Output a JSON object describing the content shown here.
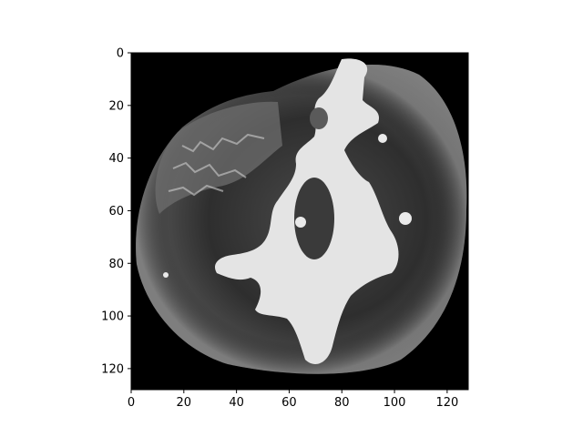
{
  "chart_data": {
    "type": "heatmap",
    "title": "",
    "xlabel": "",
    "ylabel": "",
    "colormap": "gray",
    "image_shape": [
      128,
      128
    ],
    "xlim": [
      0,
      128
    ],
    "ylim": [
      128,
      0
    ],
    "y_axis_inverted": true,
    "xticks": [
      0,
      20,
      40,
      60,
      80,
      100,
      120
    ],
    "yticks": [
      0,
      20,
      40,
      60,
      80,
      100,
      120
    ],
    "xtick_labels": [
      "0",
      "20",
      "40",
      "60",
      "80",
      "100",
      "120"
    ],
    "ytick_labels": [
      "0",
      "20",
      "40",
      "60",
      "80",
      "100",
      "120"
    ],
    "grid": false,
    "legend": "none",
    "description_note": "grayscale cross-sectional image; dark roughly circular region with bright branching central structure on black background"
  },
  "colors": {
    "background": "#000000",
    "tissue_dark": "#2a2a2a",
    "tissue_mid": "#5a5a5a",
    "highlight": "#e6e6e6",
    "axis": "#000000"
  }
}
